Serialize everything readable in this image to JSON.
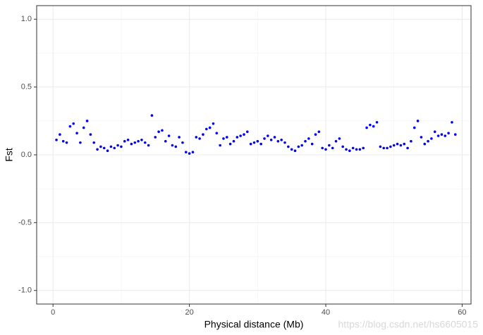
{
  "chart_data": {
    "type": "scatter",
    "x_label": "Physical distance (Mb)",
    "y_label": "Fst",
    "watermark": "https://blog.csdn.net/hs6605015",
    "color": "#0000ff",
    "grid": true,
    "xlim": [
      -2.4,
      61.3
    ],
    "ylim": [
      -1.1,
      1.1
    ],
    "xticks": [
      0,
      20,
      40,
      60
    ],
    "minor_xticks": [
      10,
      30,
      50
    ],
    "yticks": [
      {
        "value": -1.0,
        "label": "-1.0"
      },
      {
        "value": -0.5,
        "label": "-0.5"
      },
      {
        "value": 0.0,
        "label": "0.0"
      },
      {
        "value": 0.5,
        "label": "0.5"
      },
      {
        "value": 1.0,
        "label": "1.0"
      }
    ],
    "minor_yticks": [
      -0.75,
      -0.25,
      0.25,
      0.75
    ],
    "x": [
      0.5,
      1,
      1.5,
      2,
      2.5,
      3,
      3.5,
      4,
      4.5,
      5,
      5.5,
      6,
      6.5,
      7,
      7.5,
      8,
      8.5,
      9,
      9.5,
      10,
      10.5,
      11,
      11.5,
      12,
      12.5,
      13,
      13.5,
      14,
      14.5,
      15,
      15.5,
      16,
      16.5,
      17,
      17.5,
      18,
      18.5,
      19,
      19.5,
      20,
      20.5,
      21,
      21.5,
      22,
      22.5,
      23,
      23.5,
      24,
      24.5,
      25,
      25.5,
      26,
      26.5,
      27,
      27.5,
      28,
      28.5,
      29,
      29.5,
      30,
      30.5,
      31,
      31.5,
      32,
      32.5,
      33,
      33.5,
      34,
      34.5,
      35,
      35.5,
      36,
      36.5,
      37,
      37.5,
      38,
      38.5,
      39,
      39.5,
      40,
      40.5,
      41,
      41.5,
      42,
      42.5,
      43,
      43.5,
      44,
      44.5,
      45,
      45.5,
      46,
      46.5,
      47,
      47.5,
      48,
      48.5,
      49,
      49.5,
      50,
      50.5,
      51,
      51.5,
      52,
      52.5,
      53,
      53.5,
      54,
      54.5,
      55,
      55.5,
      56,
      56.5,
      57,
      57.5,
      58,
      58.5,
      59
    ],
    "values": [
      0.11,
      0.15,
      0.1,
      0.09,
      0.21,
      0.23,
      0.16,
      0.09,
      0.2,
      0.25,
      0.15,
      0.09,
      0.04,
      0.06,
      0.05,
      0.03,
      0.06,
      0.05,
      0.07,
      0.06,
      0.1,
      0.11,
      0.08,
      0.09,
      0.1,
      0.11,
      0.09,
      0.07,
      0.29,
      0.13,
      0.17,
      0.18,
      0.1,
      0.14,
      0.07,
      0.06,
      0.13,
      0.09,
      0.02,
      0.01,
      0.02,
      0.13,
      0.12,
      0.15,
      0.19,
      0.2,
      0.23,
      0.16,
      0.07,
      0.12,
      0.13,
      0.08,
      0.1,
      0.13,
      0.14,
      0.15,
      0.17,
      0.08,
      0.09,
      0.1,
      0.08,
      0.12,
      0.14,
      0.11,
      0.13,
      0.1,
      0.11,
      0.09,
      0.06,
      0.04,
      0.03,
      0.06,
      0.07,
      0.1,
      0.12,
      0.08,
      0.15,
      0.17,
      0.05,
      0.04,
      0.07,
      0.05,
      0.1,
      0.12,
      0.06,
      0.04,
      0.03,
      0.05,
      0.04,
      0.04,
      0.05,
      0.2,
      0.22,
      0.21,
      0.24,
      0.06,
      0.05,
      0.05,
      0.06,
      0.07,
      0.08,
      0.07,
      0.08,
      0.05,
      0.1,
      0.2,
      0.25,
      0.13,
      0.08,
      0.1,
      0.12,
      0.17,
      0.14,
      0.15,
      0.14,
      0.16,
      0.24,
      0.15
    ]
  }
}
